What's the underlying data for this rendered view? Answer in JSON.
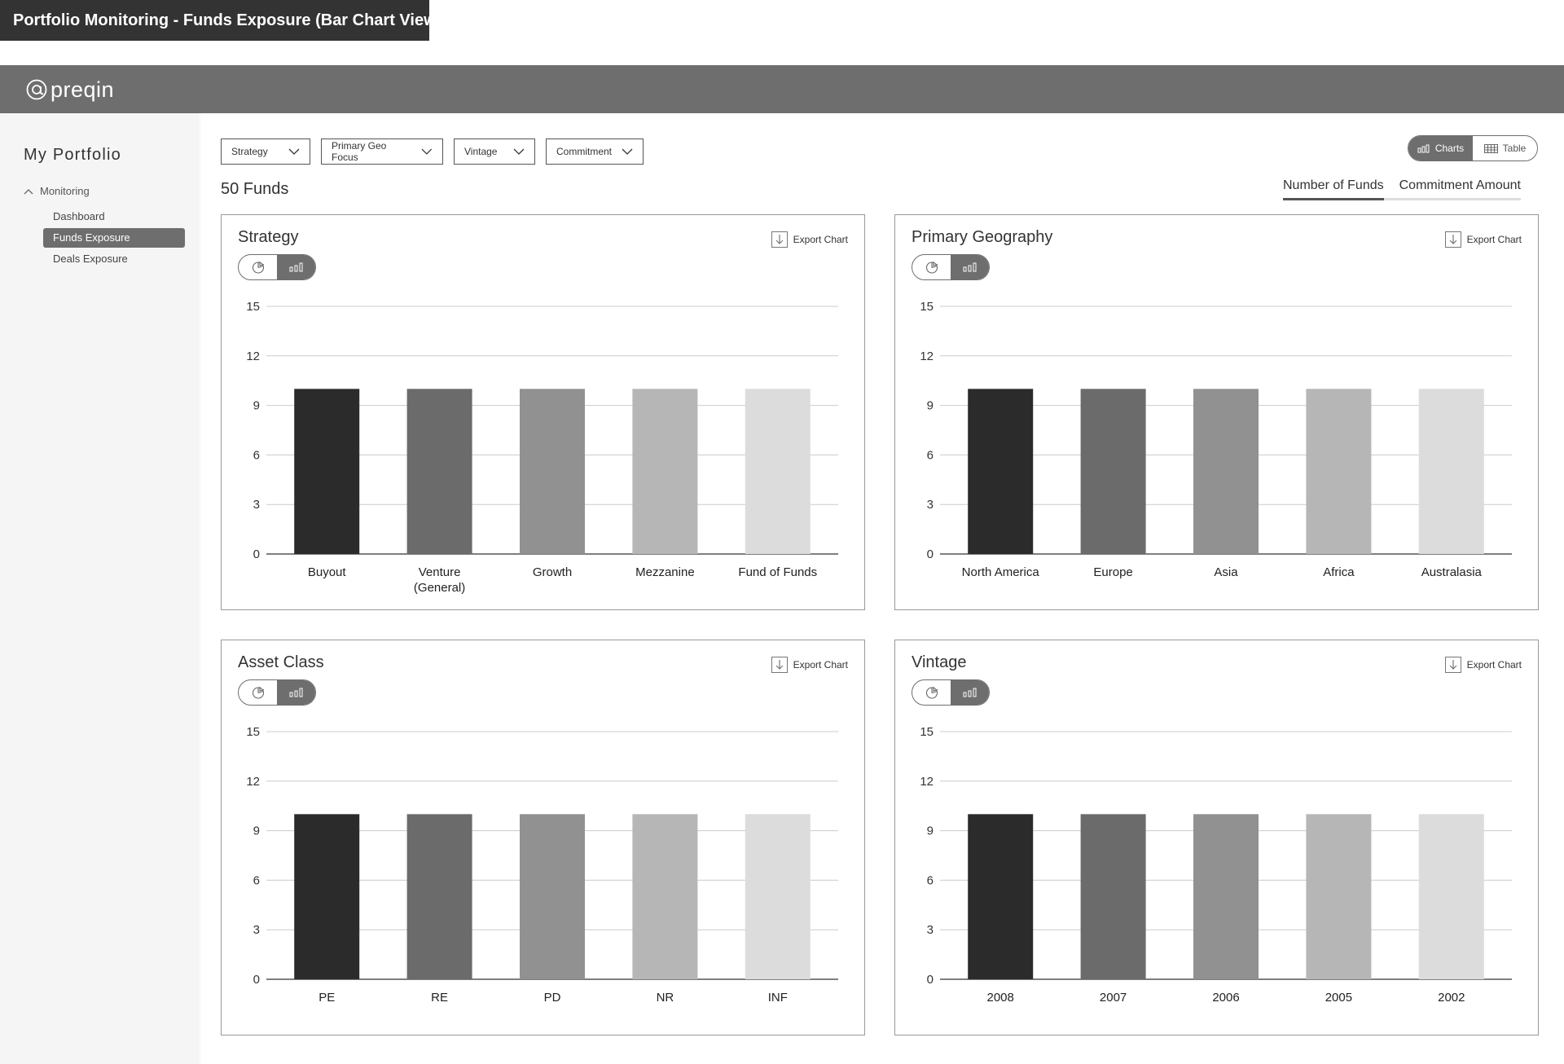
{
  "doc_title": "Portfolio Monitoring - Funds Exposure (Bar Chart View)",
  "brand": {
    "logo_icon": "at-sign-icon",
    "name": "preqin"
  },
  "sidebar": {
    "title": "My Portfolio",
    "section": "Monitoring",
    "items": [
      {
        "label": "Dashboard",
        "active": false
      },
      {
        "label": "Funds Exposure",
        "active": true
      },
      {
        "label": "Deals Exposure",
        "active": false
      }
    ]
  },
  "filters": [
    "Strategy",
    "Primary Geo Focus",
    "Vintage",
    "Commitment"
  ],
  "view_toggle": {
    "charts": "Charts",
    "table": "Table",
    "active": "charts"
  },
  "fund_count": "50 Funds",
  "metric_tabs": {
    "items": [
      "Number of Funds",
      "Commitment Amount"
    ],
    "active": "Number of Funds"
  },
  "export_label": "Export Chart",
  "colors": {
    "bars": [
      "#2b2b2b",
      "#6b6b6b",
      "#919191",
      "#b6b6b6",
      "#dcdcdc"
    ],
    "grid": "#cccccc",
    "axis": "#333333"
  },
  "chart_data": [
    {
      "type": "bar",
      "title": "Strategy",
      "categories": [
        [
          "Buyout"
        ],
        [
          "Venture",
          "(General)"
        ],
        [
          "Growth"
        ],
        [
          "Mezzanine"
        ],
        [
          "Fund of Funds"
        ]
      ],
      "values": [
        10,
        10,
        10,
        10,
        10
      ],
      "ylim": [
        0,
        15
      ],
      "yticks": [
        0,
        3,
        6,
        9,
        12,
        15
      ],
      "grid": true
    },
    {
      "type": "bar",
      "title": "Primary Geography",
      "categories": [
        [
          "North America"
        ],
        [
          "Europe"
        ],
        [
          "Asia"
        ],
        [
          "Africa"
        ],
        [
          "Australasia"
        ]
      ],
      "values": [
        10,
        10,
        10,
        10,
        10
      ],
      "ylim": [
        0,
        15
      ],
      "yticks": [
        0,
        3,
        6,
        9,
        12,
        15
      ],
      "grid": true
    },
    {
      "type": "bar",
      "title": "Asset Class",
      "categories": [
        [
          "PE"
        ],
        [
          "RE"
        ],
        [
          "PD"
        ],
        [
          "NR"
        ],
        [
          "INF"
        ]
      ],
      "values": [
        10,
        10,
        10,
        10,
        10
      ],
      "ylim": [
        0,
        15
      ],
      "yticks": [
        0,
        3,
        6,
        9,
        12,
        15
      ],
      "grid": true
    },
    {
      "type": "bar",
      "title": "Vintage",
      "categories": [
        [
          "2008"
        ],
        [
          "2007"
        ],
        [
          "2006"
        ],
        [
          "2005"
        ],
        [
          "2002"
        ]
      ],
      "values": [
        10,
        10,
        10,
        10,
        10
      ],
      "ylim": [
        0,
        15
      ],
      "yticks": [
        0,
        3,
        6,
        9,
        12,
        15
      ],
      "grid": true
    }
  ]
}
